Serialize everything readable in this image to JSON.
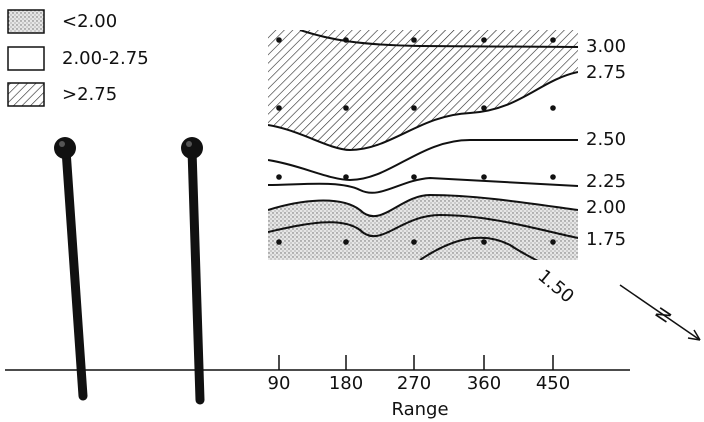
{
  "legend": {
    "items": [
      {
        "label": "<2.00"
      },
      {
        "label": "2.00-2.75"
      },
      {
        "label": ">2.75"
      }
    ]
  },
  "contour_labels": [
    "3.00",
    "2.75",
    "2.50",
    "2.25",
    "2.00",
    "1.75",
    "1.50"
  ],
  "axis": {
    "ticks": [
      "90",
      "180",
      "270",
      "360",
      "450"
    ],
    "label": "Range"
  },
  "compass_label": "N"
}
